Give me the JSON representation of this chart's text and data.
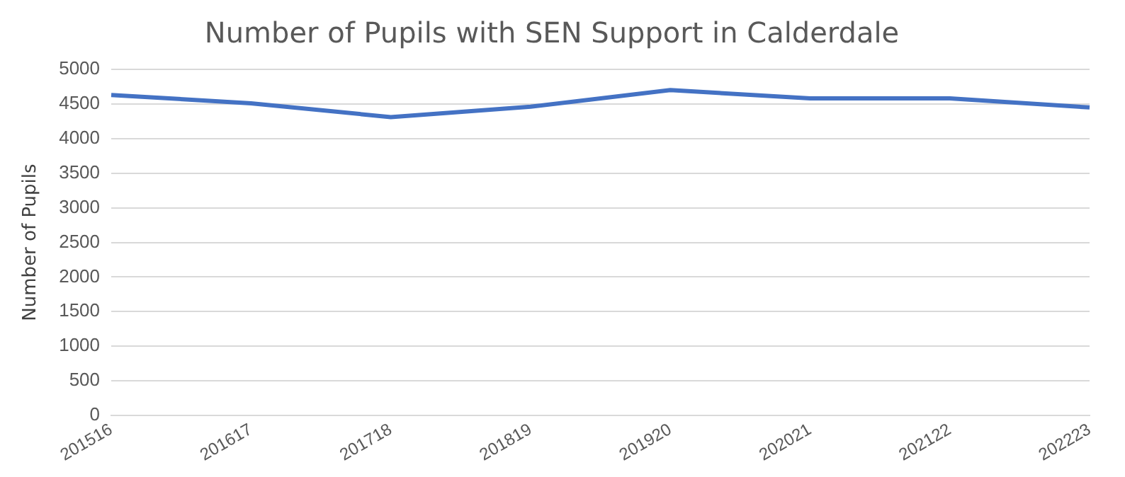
{
  "chart_data": {
    "type": "line",
    "title": "Number of Pupils with SEN Support in Calderdale",
    "ylabel": "Number of Pupils",
    "categories": [
      "201516",
      "201617",
      "201718",
      "201819",
      "201920",
      "202021",
      "202122",
      "202223"
    ],
    "series": [
      {
        "color": "#4472c4",
        "values": [
          4630,
          4510,
          4310,
          4460,
          4700,
          4580,
          4580,
          4450
        ]
      }
    ],
    "ylim": [
      0,
      5000
    ],
    "yticks": [
      0,
      500,
      1000,
      1500,
      2000,
      2500,
      3000,
      3500,
      4000,
      4500,
      5000
    ],
    "grid": "y",
    "legend": false,
    "marker": "none"
  }
}
